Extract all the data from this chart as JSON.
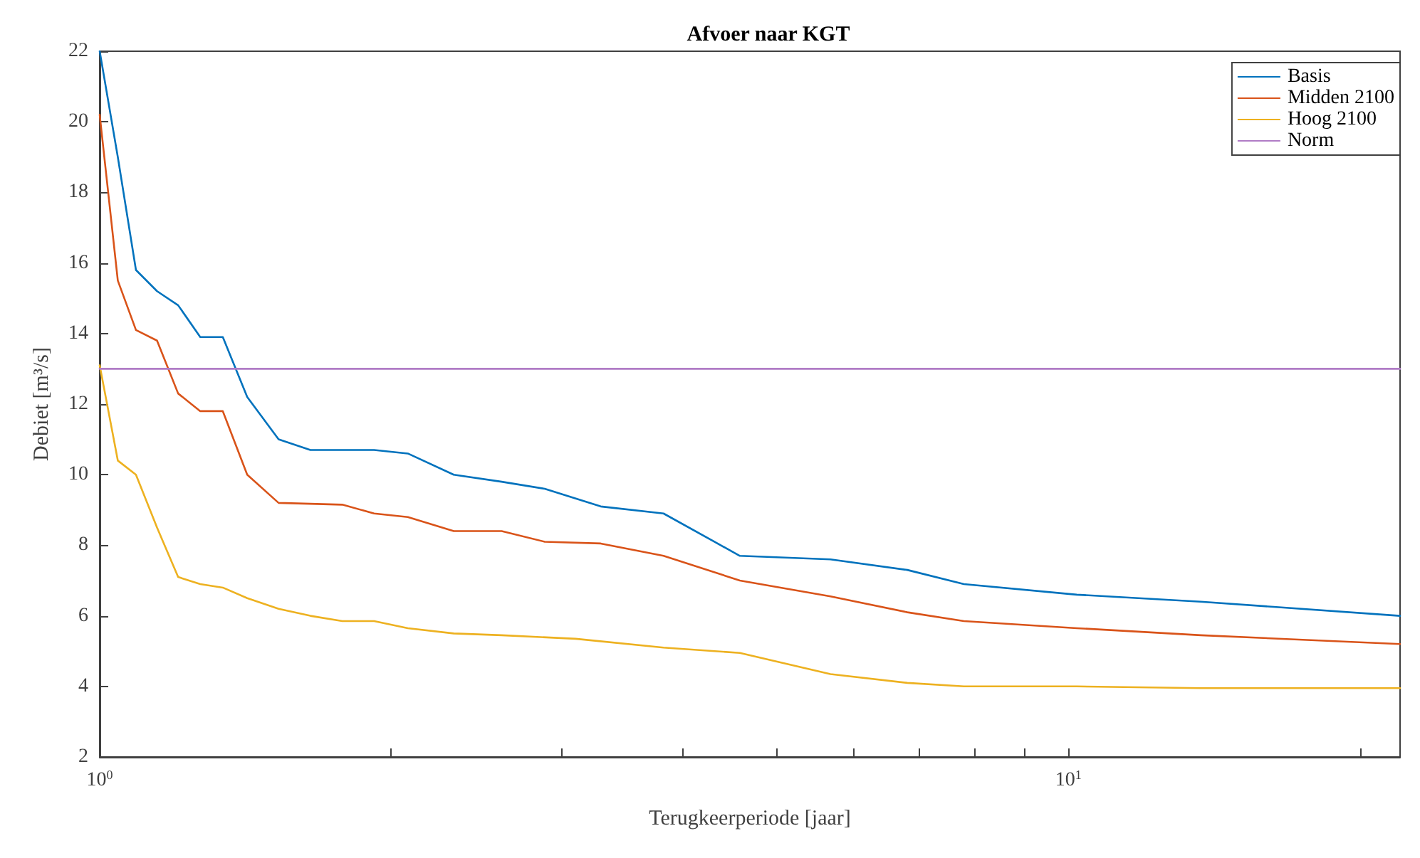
{
  "chart_data": {
    "type": "line",
    "title": "Afvoer naar KGT",
    "xlabel": "Terugkeerperiode [jaar]",
    "ylabel": "Debiet [m³/s]",
    "log": "x",
    "xlim": [
      1,
      22
    ],
    "ylim": [
      2,
      22
    ],
    "xticks": [
      {
        "value": 1,
        "label": "10$^{0}$"
      },
      {
        "value": 2,
        "label": null
      },
      {
        "value": 3,
        "label": null
      },
      {
        "value": 4,
        "label": null
      },
      {
        "value": 5,
        "label": null
      },
      {
        "value": 6,
        "label": null
      },
      {
        "value": 7,
        "label": null
      },
      {
        "value": 8,
        "label": null
      },
      {
        "value": 9,
        "label": null
      },
      {
        "value": 10,
        "label": "10$^{1}$"
      },
      {
        "value": 20,
        "label": null
      }
    ],
    "yticks": [
      2,
      4,
      6,
      8,
      10,
      12,
      14,
      16,
      18,
      20,
      22
    ],
    "grid": false,
    "legend": "top right",
    "marker": "none",
    "line_style": "solid",
    "series": [
      {
        "name": "Basis",
        "color": "#0072bd",
        "x": [
          1,
          1.044,
          1.09,
          1.146,
          1.205,
          1.27,
          1.34,
          1.42,
          1.53,
          1.65,
          1.78,
          1.92,
          2.08,
          2.32,
          2.6,
          2.88,
          3.29,
          3.82,
          4.58,
          5.68,
          6.82,
          7.8,
          10.2,
          13.7,
          22
        ],
        "values": [
          22,
          19,
          15.8,
          15.2,
          14.8,
          13.9,
          13.9,
          12.2,
          11,
          10.7,
          10.7,
          10.7,
          10.6,
          10,
          9.8,
          9.6,
          9.1,
          8.9,
          7.7,
          7.6,
          7.3,
          6.9,
          6.6,
          6.4,
          6
        ]
      },
      {
        "name": "Midden 2100",
        "color": "#d95319",
        "x": [
          1,
          1.044,
          1.09,
          1.146,
          1.205,
          1.27,
          1.34,
          1.42,
          1.53,
          1.78,
          1.92,
          2.08,
          2.32,
          2.6,
          2.88,
          3.29,
          3.82,
          4.58,
          5.68,
          6.82,
          7.8,
          10.2,
          13.7,
          22
        ],
        "values": [
          20.2,
          15.5,
          14.1,
          13.8,
          12.3,
          11.8,
          11.8,
          10,
          9.2,
          9.15,
          8.9,
          8.8,
          8.4,
          8.4,
          8.1,
          8.05,
          7.7,
          7,
          6.55,
          6.1,
          5.85,
          5.65,
          5.45,
          5.2
        ]
      },
      {
        "name": "Hoog 2100",
        "color": "#edb120",
        "x": [
          1,
          1.044,
          1.09,
          1.146,
          1.205,
          1.27,
          1.34,
          1.42,
          1.53,
          1.65,
          1.78,
          1.92,
          2.08,
          2.32,
          2.6,
          3.1,
          3.82,
          4.58,
          5.68,
          6.82,
          7.8,
          10.2,
          13.7,
          22
        ],
        "values": [
          13.1,
          10.4,
          10,
          8.5,
          7.1,
          6.9,
          6.8,
          6.5,
          6.2,
          6,
          5.85,
          5.85,
          5.65,
          5.5,
          5.45,
          5.35,
          5.1,
          4.95,
          4.35,
          4.1,
          4,
          4,
          3.95,
          3.95
        ]
      },
      {
        "name": "Norm",
        "color": "#b07cc6",
        "x": [
          1,
          22
        ],
        "values": [
          13,
          13
        ]
      }
    ]
  }
}
